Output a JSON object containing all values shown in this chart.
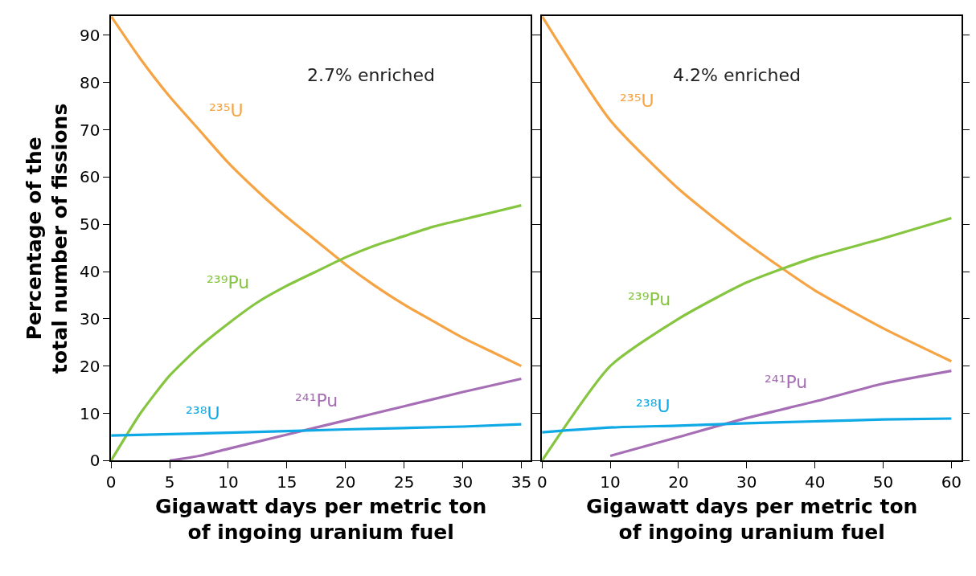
{
  "chart_data": [
    {
      "type": "line",
      "xlabel": "Gigawatt days per metric ton\nof ingoing uranium fuel",
      "ylabel": "Percentage of the\ntotal number of fissions",
      "annotations": [
        "2.7% enriched"
      ],
      "xlim": [
        0,
        35.8
      ],
      "ylim": [
        0,
        94
      ],
      "xticks": [
        0,
        5,
        10,
        15,
        20,
        25,
        30,
        35
      ],
      "yticks": [
        0,
        10,
        20,
        30,
        40,
        50,
        60,
        70,
        80,
        90
      ],
      "legend": false,
      "line_style": "solid",
      "marker": "none",
      "series": [
        {
          "name": "²³⁵U",
          "color": "#f6a343",
          "x": [
            0,
            2.5,
            5,
            7.5,
            10,
            12.5,
            15,
            17.5,
            20,
            22.5,
            25,
            27.5,
            30,
            32.5,
            35
          ],
          "values": [
            94,
            85,
            77,
            70,
            63,
            57,
            51.5,
            46.5,
            41.5,
            37,
            33,
            29.5,
            26,
            23,
            20
          ]
        },
        {
          "name": "²³⁹Pu",
          "color": "#86c540",
          "x": [
            0,
            2.5,
            5,
            7.5,
            10,
            12.5,
            15,
            17.5,
            20,
            22.5,
            25,
            27.5,
            30,
            32.5,
            35
          ],
          "values": [
            0,
            10,
            18,
            24,
            29,
            33.5,
            37,
            40,
            43,
            45.5,
            47.5,
            49.5,
            51,
            52.5,
            54
          ]
        },
        {
          "name": "²⁴¹Pu",
          "color": "#a66fb5",
          "x": [
            5,
            7.5,
            10,
            15,
            20,
            25,
            30,
            35
          ],
          "values": [
            0,
            1,
            2.5,
            5.5,
            8.5,
            11.5,
            14.5,
            17.3
          ]
        },
        {
          "name": "²³⁸U",
          "color": "#0fa9e6",
          "x": [
            0,
            10,
            20,
            30,
            35
          ],
          "values": [
            5.3,
            5.9,
            6.6,
            7.2,
            7.7
          ]
        }
      ]
    },
    {
      "type": "line",
      "xlabel": "Gigawatt days per metric ton\nof ingoing uranium fuel",
      "annotations": [
        "4.2% enriched"
      ],
      "xlim": [
        0,
        61.5
      ],
      "ylim": [
        0,
        94
      ],
      "xticks": [
        0,
        10,
        20,
        30,
        40,
        50,
        60
      ],
      "yticks": [
        {
          "value": 0,
          "label": null
        },
        {
          "value": 10,
          "label": null
        },
        {
          "value": 20,
          "label": null
        },
        {
          "value": 30,
          "label": null
        },
        {
          "value": 40,
          "label": null
        },
        {
          "value": 50,
          "label": null
        },
        {
          "value": 60,
          "label": null
        },
        {
          "value": 70,
          "label": null
        },
        {
          "value": 80,
          "label": null
        },
        {
          "value": 90,
          "label": null
        }
      ],
      "tick_labels": "x",
      "legend": false,
      "line_style": "solid",
      "marker": "none",
      "series": [
        {
          "name": "²³⁵U",
          "color": "#f6a343",
          "x": [
            0,
            10,
            20,
            30,
            40,
            50,
            60
          ],
          "values": [
            94,
            72,
            57.5,
            46,
            36,
            28,
            21
          ]
        },
        {
          "name": "²³⁹Pu",
          "color": "#86c540",
          "x": [
            0,
            10,
            20,
            30,
            40,
            50,
            60
          ],
          "values": [
            0,
            20,
            30,
            37.7,
            43,
            47,
            51.3
          ]
        },
        {
          "name": "²⁴¹Pu",
          "color": "#a66fb5",
          "x": [
            10,
            20,
            30,
            40,
            50,
            60
          ],
          "values": [
            1,
            5,
            9,
            12.5,
            16.3,
            19
          ]
        },
        {
          "name": "²³⁸U",
          "color": "#0fa9e6",
          "x": [
            0,
            10,
            20,
            30,
            40,
            50,
            60
          ],
          "values": [
            6,
            7,
            7.4,
            7.9,
            8.3,
            8.7,
            8.9
          ]
        }
      ]
    }
  ]
}
